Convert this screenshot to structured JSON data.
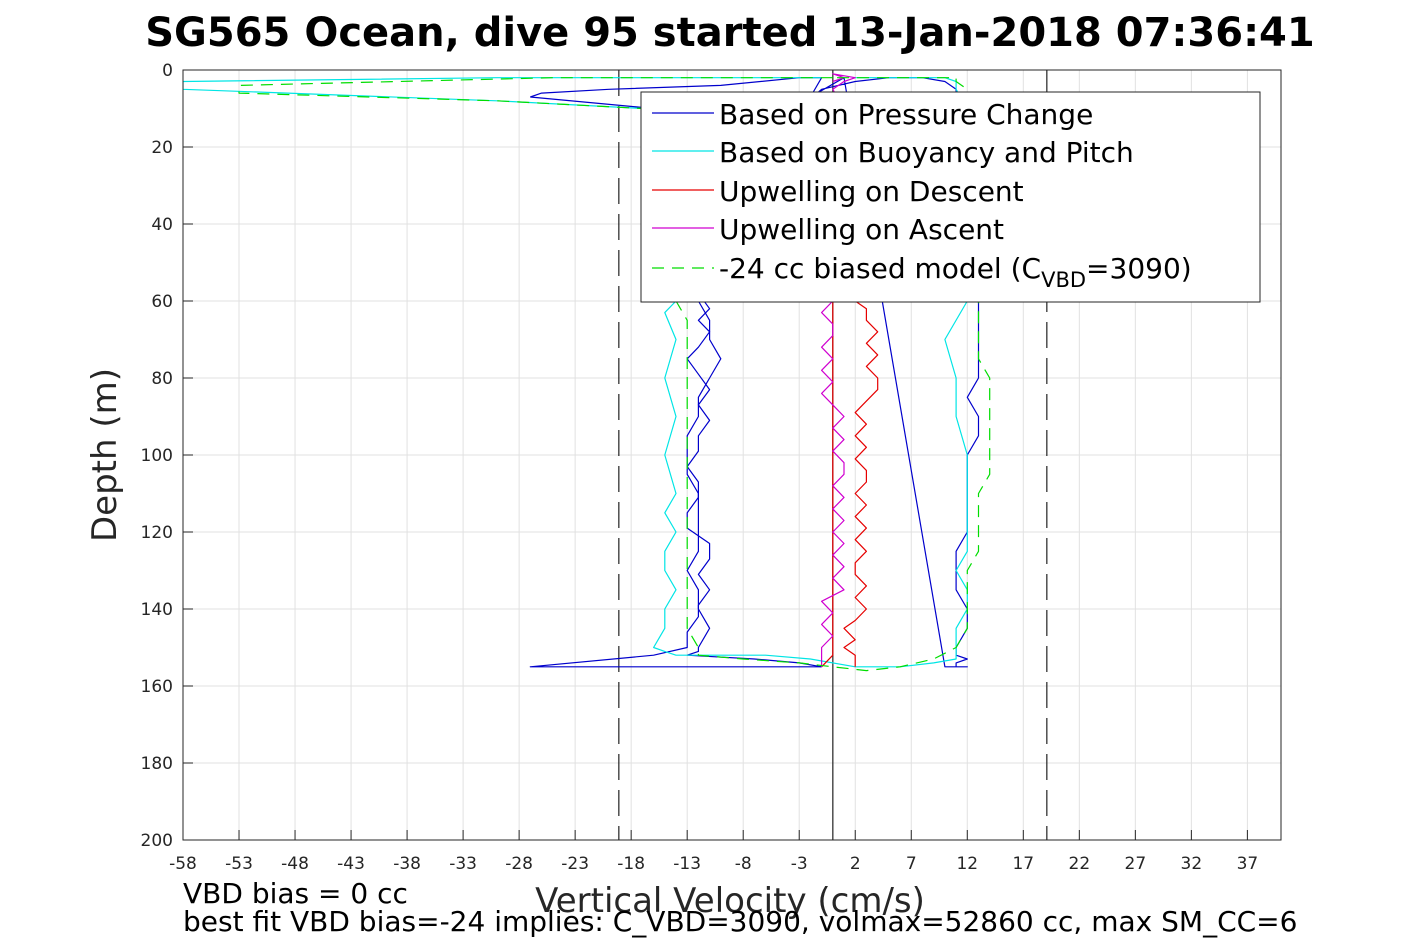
{
  "chart_data": {
    "type": "line",
    "title": "SG565 Ocean, dive 95 started 13-Jan-2018 07:36:41",
    "xlabel": "Vertical Velocity (cm/s)",
    "ylabel": "Depth (m)",
    "xlim": [
      -58,
      40
    ],
    "ylim": [
      0,
      200
    ],
    "y_reversed": true,
    "grid": true,
    "legend_position": "top-right",
    "x_ticks": [
      "-58",
      "-53",
      "-48",
      "-43",
      "-38",
      "-33",
      "-28",
      "-23",
      "-18",
      "-13",
      "-8",
      "-3",
      "2",
      "7",
      "12",
      "17",
      "22",
      "27",
      "32",
      "37"
    ],
    "y_ticks": [
      "0",
      "20",
      "40",
      "60",
      "80",
      "100",
      "120",
      "140",
      "160",
      "180",
      "200"
    ],
    "reference_lines": [
      {
        "x": -19.1,
        "style": "dashed"
      },
      {
        "x": 0,
        "style": "solid"
      },
      {
        "x": 19.1,
        "style": "dashed"
      }
    ],
    "legend_entries": [
      {
        "label": "Based on Pressure Change",
        "color": "#0000cc"
      },
      {
        "label": "Based on Buoyancy and Pitch",
        "color": "#00e5e5"
      },
      {
        "label": "Upwelling on Descent",
        "color": "#e60000"
      },
      {
        "label": "Upwelling on Ascent",
        "color": "#d000d0"
      },
      {
        "label": "-24 cc biased model (C",
        "sub": "VBD",
        "suffix": "=3090)",
        "color": "#00dd00"
      }
    ],
    "series": [
      {
        "name": "Based on Pressure Change",
        "color": "#0000cc",
        "x": [
          -1,
          -3,
          -26,
          -27,
          -16,
          -13,
          -13,
          -12,
          -12,
          -11,
          -12,
          -11,
          -11,
          -13,
          -13,
          -12,
          -12,
          -13,
          -12,
          -12,
          -11,
          -12,
          -11,
          -12,
          -13,
          -12,
          -11,
          -12,
          -11,
          -12,
          -13,
          -12,
          -12,
          -13,
          -12,
          -12,
          -13,
          -7,
          -3,
          -1,
          2,
          5,
          8,
          10,
          11,
          11,
          12,
          12,
          12,
          12,
          13,
          13,
          13,
          13,
          12,
          13,
          13,
          12,
          12,
          12,
          12,
          12,
          11,
          11,
          11,
          12,
          12,
          11,
          11,
          12,
          11,
          11,
          11,
          11,
          12,
          11,
          12,
          11,
          11,
          10,
          11,
          10,
          10,
          1,
          -2,
          -1
        ],
        "y": [
          155,
          155,
          155,
          155,
          152,
          150,
          146,
          142,
          139,
          135,
          131,
          127,
          123,
          119,
          115,
          111,
          107,
          103,
          99,
          95,
          91,
          87,
          83,
          79,
          75,
          72,
          68,
          65,
          62,
          58,
          54,
          50,
          46,
          42,
          38,
          34,
          30,
          20,
          10,
          5,
          3,
          2,
          2,
          3,
          5,
          10,
          20,
          30,
          40,
          50,
          60,
          70,
          75,
          80,
          85,
          90,
          95,
          100,
          105,
          110,
          115,
          120,
          125,
          130,
          135,
          140,
          145,
          150,
          152,
          153,
          154,
          155,
          155,
          155,
          155,
          155,
          155,
          155,
          155,
          155,
          155,
          155,
          155,
          2,
          7,
          2
        ],
        "desc_x": [
          -1,
          -3,
          -10,
          -20,
          -26,
          -27,
          -16,
          -14,
          -13,
          -13,
          -12,
          -12,
          -11,
          -11,
          -10,
          -11,
          -12,
          -12,
          -13,
          -13,
          -13,
          -12,
          -12,
          -12,
          -12,
          -13,
          -12,
          -12,
          -11,
          -12,
          -12,
          -13,
          -13,
          -13,
          -7,
          -3,
          -1
        ],
        "desc_y": [
          2,
          2,
          4,
          5,
          6,
          7,
          10,
          20,
          30,
          40,
          50,
          60,
          65,
          70,
          75,
          80,
          85,
          90,
          95,
          100,
          105,
          110,
          115,
          120,
          125,
          130,
          135,
          140,
          145,
          150,
          151,
          152,
          152,
          152,
          153,
          154,
          155
        ]
      },
      {
        "name": "Based on Buoyancy and Pitch",
        "color": "#00e5e5",
        "x": [
          -1,
          -30,
          -58,
          -58,
          -30,
          -17,
          -16,
          -15,
          -14,
          -15,
          -14,
          -15,
          -14,
          -15,
          -14,
          -15,
          -14,
          -15,
          -15,
          -14,
          -15,
          -15,
          -16,
          -15,
          -14,
          -6,
          -2,
          2,
          6,
          9,
          11,
          11,
          11,
          12,
          12,
          11,
          12,
          12,
          12,
          12,
          12,
          11,
          11,
          10,
          12,
          11,
          11,
          11,
          11,
          11,
          12,
          11,
          11,
          10,
          2
        ],
        "y": [
          2,
          2,
          3,
          5,
          8,
          10,
          20,
          40,
          60,
          63,
          70,
          80,
          90,
          100,
          110,
          115,
          120,
          125,
          130,
          135,
          140,
          145,
          150,
          151,
          152,
          152,
          153,
          155,
          155,
          154,
          153,
          150,
          145,
          140,
          135,
          130,
          125,
          120,
          115,
          110,
          100,
          90,
          80,
          70,
          60,
          50,
          40,
          30,
          20,
          15,
          10,
          5,
          3,
          2,
          2
        ]
      },
      {
        "name": "Upwelling on Descent",
        "color": "#e60000",
        "x": [
          2,
          2,
          1,
          2,
          1,
          2,
          3,
          2,
          3,
          2,
          2,
          3,
          2,
          3,
          2,
          3,
          2,
          3,
          3,
          2,
          3,
          2,
          3,
          2,
          3,
          4,
          4,
          3,
          4,
          3,
          4,
          3,
          3,
          2,
          0,
          0,
          -1
        ],
        "y": [
          155,
          152,
          150,
          148,
          145,
          143,
          140,
          137,
          134,
          131,
          128,
          125,
          122,
          119,
          116,
          113,
          110,
          107,
          104,
          101,
          98,
          95,
          92,
          89,
          86,
          83,
          80,
          77,
          74,
          71,
          68,
          65,
          62,
          60,
          55,
          152,
          155
        ]
      },
      {
        "name": "Upwelling on Ascent",
        "color": "#d000d0",
        "x": [
          -1,
          -1,
          -1,
          0,
          -1,
          0,
          -1,
          1,
          0,
          1,
          0,
          1,
          0,
          1,
          0,
          1,
          0,
          1,
          1,
          0,
          1,
          0,
          1,
          0,
          -1,
          0,
          -1,
          0,
          -1,
          0,
          0,
          -1,
          0,
          0,
          -1,
          0,
          -1,
          0,
          1,
          0,
          1,
          2,
          0,
          1,
          0
        ],
        "y": [
          155,
          153,
          150,
          147,
          144,
          141,
          138,
          135,
          132,
          129,
          126,
          123,
          120,
          117,
          114,
          111,
          108,
          105,
          102,
          99,
          96,
          93,
          90,
          87,
          84,
          81,
          78,
          75,
          72,
          69,
          66,
          63,
          60,
          55,
          50,
          40,
          30,
          20,
          10,
          5,
          3,
          2,
          1,
          2,
          3
        ]
      },
      {
        "name": "-24 cc biased model (CVBD=3090)",
        "color": "#00dd00",
        "dashed": true,
        "x": [
          0,
          -25,
          -53,
          -53,
          -30,
          -17,
          -16,
          -15,
          -14,
          -13,
          -13,
          -13,
          -13,
          -13,
          -13,
          -13,
          -13,
          -13,
          -13,
          -13,
          -13,
          -13,
          -12,
          -12,
          -8,
          -3,
          0,
          3,
          6,
          9,
          11,
          12,
          12,
          12,
          12,
          13,
          13,
          13,
          13,
          14,
          14,
          14,
          14,
          13,
          13,
          13,
          12,
          12,
          12,
          12,
          12,
          12,
          11,
          11,
          0
        ],
        "y": [
          2,
          2,
          4,
          6,
          8,
          10,
          20,
          40,
          60,
          65,
          70,
          80,
          90,
          100,
          110,
          115,
          120,
          125,
          130,
          135,
          140,
          145,
          150,
          152,
          153,
          154,
          155,
          156,
          155,
          153,
          150,
          145,
          140,
          135,
          130,
          125,
          120,
          115,
          110,
          105,
          100,
          90,
          80,
          75,
          70,
          60,
          50,
          40,
          30,
          20,
          10,
          5,
          3,
          2,
          2
        ]
      }
    ],
    "annotations": [
      {
        "text": "VBD bias = 0 cc"
      },
      {
        "text": "best fit VBD bias=-24 implies: C_VBD=3090, volmax=52860 cc, max SM_CC=6"
      }
    ]
  }
}
